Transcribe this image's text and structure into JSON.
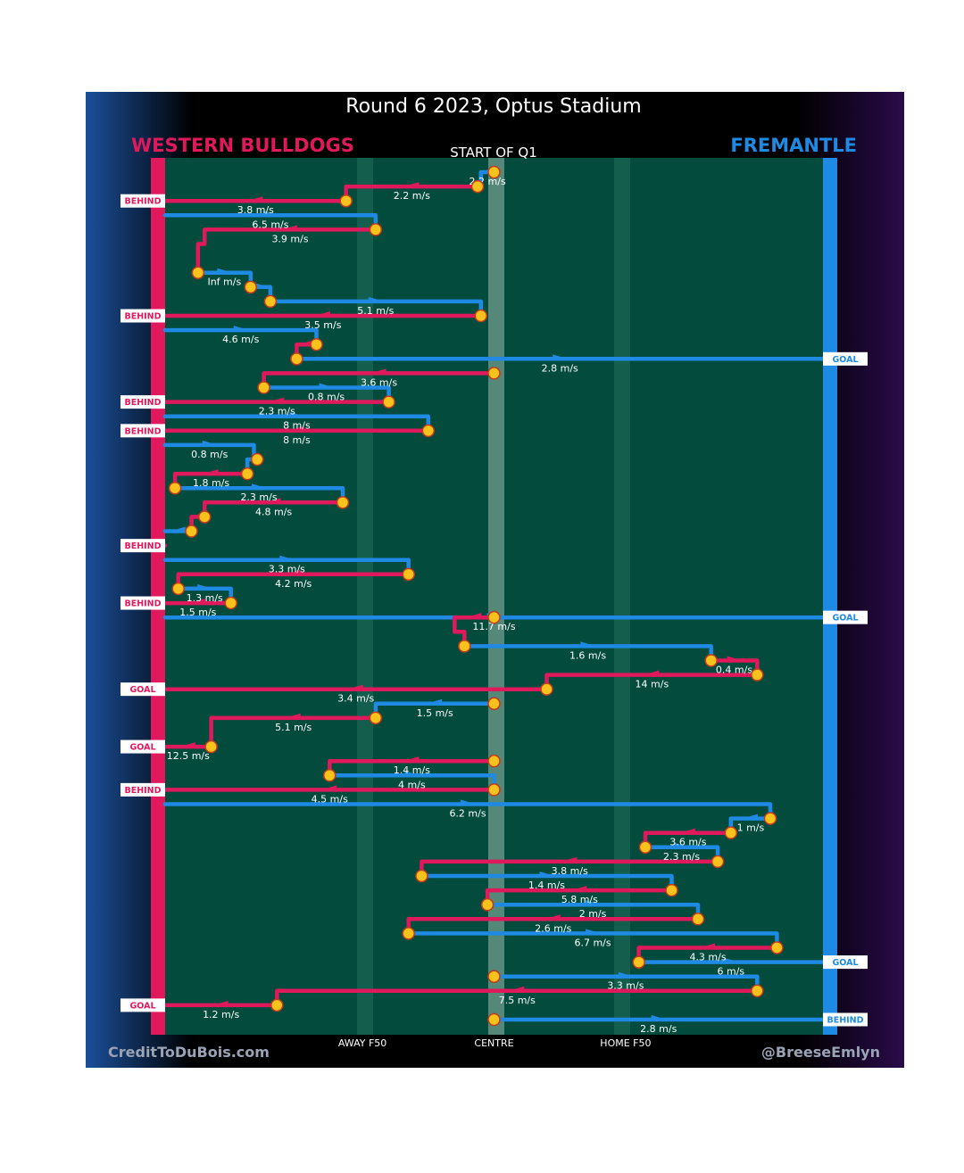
{
  "title": "Round 6 2023, Optus Stadium",
  "subtitle": "START OF Q1",
  "teams": {
    "away": {
      "name": "WESTERN BULLDOGS",
      "color": "#e0195d"
    },
    "home": {
      "name": "FREMANTLE",
      "color": "#1f8ae3"
    }
  },
  "footer": {
    "left": "CreditToDuBois.com",
    "right": "@BreeseEmlyn"
  },
  "colors": {
    "field": "#034b3d",
    "background": "#000000",
    "marker": "#f7c21b",
    "marker_outline": "#c23a1d"
  },
  "chart_data": {
    "type": "line",
    "x_axis": {
      "ticks": [
        {
          "label": "AWAY F50",
          "value": 0.3
        },
        {
          "label": "CENTRE",
          "value": 0.5
        },
        {
          "label": "HOME F50",
          "value": 0.7
        }
      ],
      "range": [
        0,
        1
      ]
    },
    "chains": [
      {
        "team": "home",
        "speed": "2.2 m/s",
        "y0": 0,
        "points": [
          [
            0.5,
            0
          ],
          [
            0.48,
            0
          ],
          [
            0.48,
            1
          ]
        ]
      },
      {
        "team": "away",
        "speed": "2.2 m/s",
        "points": [
          [
            0.475,
            1
          ],
          [
            0.275,
            1
          ],
          [
            0.275,
            2
          ]
        ]
      },
      {
        "team": "away",
        "speed": "3.8 m/s",
        "points": [
          [
            0.275,
            2
          ],
          [
            0,
            2
          ]
        ],
        "result": "BEHIND"
      },
      {
        "team": "home",
        "speed": "6.5 m/s",
        "points": [
          [
            0,
            3
          ],
          [
            0.32,
            3
          ],
          [
            0.32,
            4
          ]
        ]
      },
      {
        "team": "away",
        "speed": "3.9 m/s",
        "points": [
          [
            0.32,
            4
          ],
          [
            0.06,
            4
          ],
          [
            0.06,
            5
          ],
          [
            0.05,
            5
          ],
          [
            0.05,
            7
          ]
        ]
      },
      {
        "team": "home",
        "speed": "Inf m/s",
        "points": [
          [
            0.05,
            7
          ],
          [
            0.13,
            7
          ],
          [
            0.13,
            8
          ]
        ]
      },
      {
        "team": "home",
        "speed": "",
        "points": [
          [
            0.13,
            8
          ],
          [
            0.16,
            8
          ],
          [
            0.16,
            9
          ]
        ]
      },
      {
        "team": "home",
        "speed": "5.1 m/s",
        "points": [
          [
            0.16,
            9
          ],
          [
            0.48,
            9
          ],
          [
            0.48,
            10
          ]
        ]
      },
      {
        "team": "away",
        "speed": "3.5 m/s",
        "points": [
          [
            0.48,
            10
          ],
          [
            0,
            10
          ]
        ],
        "result": "BEHIND"
      },
      {
        "team": "home",
        "speed": "4.6 m/s",
        "points": [
          [
            0,
            11
          ],
          [
            0.23,
            11
          ],
          [
            0.23,
            12
          ]
        ]
      },
      {
        "team": "away",
        "speed": "",
        "points": [
          [
            0.23,
            12
          ],
          [
            0.2,
            12
          ],
          [
            0.2,
            13
          ]
        ]
      },
      {
        "team": "home",
        "speed": "2.8 m/s",
        "points": [
          [
            0.2,
            13
          ],
          [
            1,
            13
          ]
        ],
        "result": "GOAL"
      },
      {
        "team": "away",
        "speed": "3.6 m/s",
        "points": [
          [
            0.5,
            14
          ],
          [
            0.15,
            14
          ],
          [
            0.15,
            15
          ]
        ]
      },
      {
        "team": "home",
        "speed": "0.8 m/s",
        "points": [
          [
            0.15,
            15
          ],
          [
            0.34,
            15
          ],
          [
            0.34,
            16
          ]
        ]
      },
      {
        "team": "away",
        "speed": "2.3 m/s",
        "points": [
          [
            0.34,
            16
          ],
          [
            0,
            16
          ]
        ],
        "result": "BEHIND"
      },
      {
        "team": "home",
        "speed": "8 m/s",
        "points": [
          [
            0,
            17
          ],
          [
            0.4,
            17
          ],
          [
            0.4,
            18
          ]
        ]
      },
      {
        "team": "away",
        "speed": "8 m/s",
        "points": [
          [
            0.4,
            18
          ],
          [
            0,
            18
          ]
        ],
        "result": "BEHIND"
      },
      {
        "team": "home",
        "speed": "0.8 m/s",
        "points": [
          [
            0,
            19
          ],
          [
            0.135,
            19
          ],
          [
            0.135,
            20
          ]
        ]
      },
      {
        "team": "home",
        "speed": "",
        "points": [
          [
            0.14,
            20
          ],
          [
            0.125,
            20
          ],
          [
            0.125,
            21
          ]
        ]
      },
      {
        "team": "away",
        "speed": "1.8 m/s",
        "points": [
          [
            0.125,
            21
          ],
          [
            0.015,
            21
          ],
          [
            0.015,
            22
          ]
        ]
      },
      {
        "team": "home",
        "speed": "2.3 m/s",
        "points": [
          [
            0.015,
            22
          ],
          [
            0.27,
            22
          ],
          [
            0.27,
            23
          ]
        ]
      },
      {
        "team": "away",
        "speed": "4.8 m/s",
        "points": [
          [
            0.27,
            23
          ],
          [
            0.06,
            23
          ],
          [
            0.06,
            24
          ]
        ]
      },
      {
        "team": "away",
        "speed": "",
        "points": [
          [
            0.06,
            24
          ],
          [
            0.04,
            24
          ],
          [
            0.04,
            25
          ]
        ]
      },
      {
        "team": "home",
        "speed": "",
        "points": [
          [
            0.04,
            25
          ],
          [
            0,
            25
          ]
        ]
      },
      {
        "team": "away",
        "speed": "",
        "points": [
          [
            0,
            26
          ],
          [
            0,
            26
          ]
        ],
        "result": "BEHIND"
      },
      {
        "team": "home",
        "speed": "3.3 m/s",
        "points": [
          [
            0,
            27
          ],
          [
            0.37,
            27
          ],
          [
            0.37,
            28
          ]
        ]
      },
      {
        "team": "away",
        "speed": "4.2 m/s",
        "points": [
          [
            0.37,
            28
          ],
          [
            0.02,
            28
          ],
          [
            0.02,
            29
          ]
        ]
      },
      {
        "team": "home",
        "speed": "1.3 m/s",
        "points": [
          [
            0.02,
            29
          ],
          [
            0.1,
            29
          ],
          [
            0.1,
            30
          ]
        ]
      },
      {
        "team": "away",
        "speed": "1.5 m/s",
        "points": [
          [
            0.1,
            30
          ],
          [
            0,
            30
          ]
        ],
        "result": "BEHIND"
      },
      {
        "team": "home",
        "speed": "11.7 m/s",
        "points": [
          [
            0,
            31
          ],
          [
            1,
            31
          ]
        ],
        "result": "GOAL"
      },
      {
        "team": "away",
        "speed": "",
        "points": [
          [
            0.5,
            31
          ],
          [
            0.5,
            31
          ],
          [
            0.44,
            31
          ],
          [
            0.44,
            32
          ],
          [
            0.455,
            32
          ],
          [
            0.455,
            33
          ]
        ]
      },
      {
        "team": "home",
        "speed": "1.6 m/s",
        "points": [
          [
            0.455,
            33
          ],
          [
            0.83,
            33
          ],
          [
            0.83,
            34
          ]
        ]
      },
      {
        "team": "away",
        "speed": "0.4 m/s",
        "points": [
          [
            0.83,
            34
          ],
          [
            0.9,
            34
          ],
          [
            0.9,
            35
          ]
        ]
      },
      {
        "team": "away",
        "speed": "14 m/s",
        "points": [
          [
            0.9,
            35
          ],
          [
            0.58,
            35
          ],
          [
            0.58,
            36
          ]
        ]
      },
      {
        "team": "away",
        "speed": "3.4 m/s",
        "points": [
          [
            0.58,
            36
          ],
          [
            0,
            36
          ]
        ],
        "result": "GOAL"
      },
      {
        "team": "home",
        "speed": "1.5 m/s",
        "points": [
          [
            0.5,
            37
          ],
          [
            0.32,
            37
          ],
          [
            0.32,
            38
          ]
        ]
      },
      {
        "team": "away",
        "speed": "5.1 m/s",
        "points": [
          [
            0.32,
            38
          ],
          [
            0.07,
            38
          ],
          [
            0.07,
            40
          ]
        ]
      },
      {
        "team": "away",
        "speed": "12.5 m/s",
        "points": [
          [
            0.07,
            40
          ],
          [
            0,
            40
          ]
        ],
        "result": "GOAL"
      },
      {
        "team": "away",
        "speed": "1.4 m/s",
        "points": [
          [
            0.5,
            41
          ],
          [
            0.25,
            41
          ],
          [
            0.25,
            42
          ]
        ]
      },
      {
        "team": "home",
        "speed": "4 m/s",
        "points": [
          [
            0.25,
            42
          ],
          [
            0.5,
            42
          ],
          [
            0.5,
            43
          ]
        ]
      },
      {
        "team": "away",
        "speed": "4.5 m/s",
        "points": [
          [
            0.5,
            43
          ],
          [
            0,
            43
          ]
        ],
        "result": "BEHIND"
      },
      {
        "team": "home",
        "speed": "6.2 m/s",
        "points": [
          [
            0,
            44
          ],
          [
            0.92,
            44
          ],
          [
            0.92,
            45
          ]
        ]
      },
      {
        "team": "home",
        "speed": "1 m/s",
        "points": [
          [
            0.92,
            45
          ],
          [
            0.86,
            45
          ],
          [
            0.86,
            46
          ]
        ]
      },
      {
        "team": "away",
        "speed": "3.6 m/s",
        "points": [
          [
            0.86,
            46
          ],
          [
            0.73,
            46
          ],
          [
            0.73,
            47
          ]
        ]
      },
      {
        "team": "home",
        "speed": "2.3 m/s",
        "points": [
          [
            0.73,
            47
          ],
          [
            0.84,
            47
          ],
          [
            0.84,
            48
          ]
        ]
      },
      {
        "team": "away",
        "speed": "3.8 m/s",
        "points": [
          [
            0.84,
            48
          ],
          [
            0.39,
            48
          ],
          [
            0.39,
            49
          ]
        ]
      },
      {
        "team": "home",
        "speed": "1.4 m/s",
        "points": [
          [
            0.39,
            49
          ],
          [
            0.77,
            49
          ],
          [
            0.77,
            50
          ]
        ]
      },
      {
        "team": "away",
        "speed": "5.8 m/s",
        "points": [
          [
            0.77,
            50
          ],
          [
            0.49,
            50
          ],
          [
            0.49,
            51
          ]
        ]
      },
      {
        "team": "home",
        "speed": "2 m/s",
        "points": [
          [
            0.49,
            51
          ],
          [
            0.81,
            51
          ],
          [
            0.81,
            52
          ]
        ]
      },
      {
        "team": "away",
        "speed": "2.6 m/s",
        "points": [
          [
            0.81,
            52
          ],
          [
            0.37,
            52
          ],
          [
            0.37,
            53
          ]
        ]
      },
      {
        "team": "home",
        "speed": "6.7 m/s",
        "points": [
          [
            0.37,
            53
          ],
          [
            0.93,
            53
          ],
          [
            0.93,
            54
          ]
        ]
      },
      {
        "team": "away",
        "speed": "4.3 m/s",
        "points": [
          [
            0.93,
            54
          ],
          [
            0.72,
            54
          ],
          [
            0.72,
            55
          ]
        ]
      },
      {
        "team": "home",
        "speed": "6 m/s",
        "points": [
          [
            0.72,
            55
          ],
          [
            1,
            55
          ]
        ],
        "result": "GOAL"
      },
      {
        "team": "home",
        "speed": "3.3 m/s",
        "points": [
          [
            0.5,
            56
          ],
          [
            0.9,
            56
          ],
          [
            0.9,
            57
          ]
        ]
      },
      {
        "team": "away",
        "speed": "7.5 m/s",
        "points": [
          [
            0.9,
            57
          ],
          [
            0.17,
            57
          ],
          [
            0.17,
            58
          ]
        ]
      },
      {
        "team": "away",
        "speed": "1.2 m/s",
        "points": [
          [
            0.17,
            58
          ],
          [
            0,
            58
          ]
        ],
        "result": "GOAL"
      },
      {
        "team": "home",
        "speed": "2.8 m/s",
        "points": [
          [
            0.5,
            59
          ],
          [
            1,
            59
          ]
        ],
        "result": "BEHIND"
      }
    ],
    "y_range": [
      0,
      59
    ]
  }
}
